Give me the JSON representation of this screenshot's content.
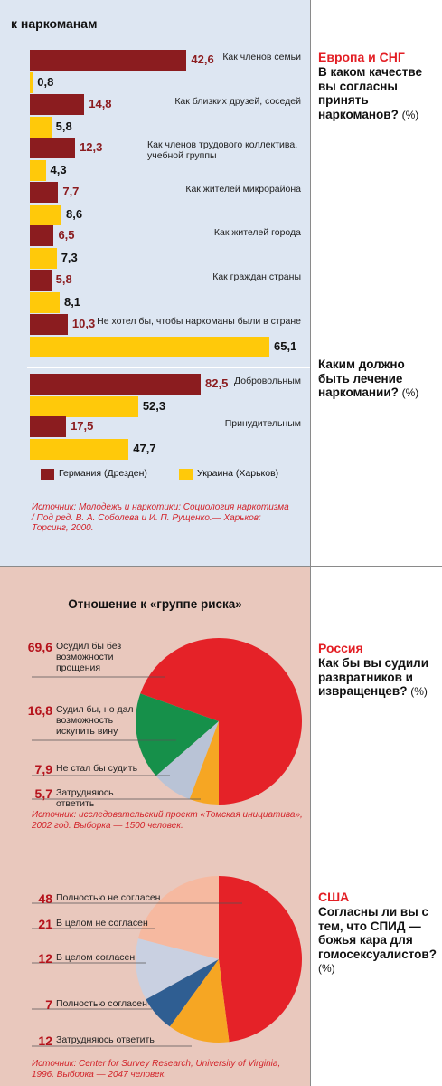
{
  "header": {
    "title": "к наркоманам"
  },
  "chart_data": [
    {
      "type": "bar",
      "orientation": "horizontal",
      "region": "Европа и СНГ",
      "question": "В каком качестве вы согласны принять наркоманов?",
      "unit": "(%)",
      "categories": [
        "Как членов семьи",
        "Как близких друзей, соседей",
        "Как членов трудового коллектива, учебной группы",
        "Как жителей микрорайона",
        "Как жителей города",
        "Как граждан страны",
        "Не хотел бы, чтобы наркоманы были в стране"
      ],
      "series": [
        {
          "name": "Германия (Дрезден)",
          "color": "#8b1c1f",
          "values": [
            42.6,
            14.8,
            12.3,
            7.7,
            6.5,
            5.8,
            10.3
          ],
          "value_labels": [
            "42,6",
            "14,8",
            "12,3",
            "7,7",
            "6,5",
            "5,8",
            "10,3"
          ]
        },
        {
          "name": "Украина (Харьков)",
          "color": "#ffc90a",
          "values": [
            0.8,
            5.8,
            4.3,
            8.6,
            7.3,
            8.1,
            65.1
          ],
          "value_labels": [
            "0,8",
            "5,8",
            "4,3",
            "8,6",
            "7,3",
            "8,1",
            "65,1"
          ]
        }
      ]
    },
    {
      "type": "bar",
      "orientation": "horizontal",
      "question": "Каким должно быть лечение наркомании?",
      "unit": "(%)",
      "categories": [
        "Добровольным",
        "Принудительным"
      ],
      "series": [
        {
          "color": "#8b1c1f",
          "values": [
            82.5,
            17.5
          ],
          "value_labels": [
            "82,5",
            "17,5"
          ]
        },
        {
          "color": "#ffc90a",
          "values": [
            52.3,
            47.7
          ],
          "value_labels": [
            "52,3",
            "47,7"
          ]
        }
      ],
      "source": "Источник: Молодежь и наркотики: Социология наркотизма / Под ред. В. А. Соболева и И. П. Рущенко.— Харьков: Торсинг, 2000."
    },
    {
      "type": "pie",
      "title": "Отношение к «группе риска»",
      "region": "Россия",
      "question": "Как бы вы судили развратников и извращенцев?",
      "unit": "(%)",
      "categories": [
        "Осудил бы без возможности прощения",
        "Судил бы, но дал возможность искупить вину",
        "Не стал бы судить",
        "Затрудняюсь ответить"
      ],
      "values": [
        69.6,
        16.8,
        7.9,
        5.7
      ],
      "value_labels": [
        "69,6",
        "16,8",
        "7,9",
        "5,7"
      ],
      "colors": [
        "#e52228",
        "#16904a",
        "#b9c3d6",
        "#f6a623"
      ],
      "source": "Источник: исследовательский проект «Томская инициатива», 2002 год. Выборка — 1500 человек."
    },
    {
      "type": "pie",
      "region": "США",
      "question": "Согласны ли вы с тем, что СПИД — божья кара для гомосексуалистов?",
      "unit": "(%)",
      "categories": [
        "Полностью не согласен",
        "В целом не согласен",
        "В целом согласен",
        "Полностью согласен",
        "Затрудняюсь ответить"
      ],
      "values": [
        48,
        21,
        12,
        7,
        12
      ],
      "colors": [
        "#e52228",
        "#f6b9a0",
        "#c9d0e1",
        "#2f5e92",
        "#f6a623"
      ],
      "source": "Источник: Center for Survey Research, University of Virginia, 1996. Выборка — 2047 человек."
    }
  ]
}
